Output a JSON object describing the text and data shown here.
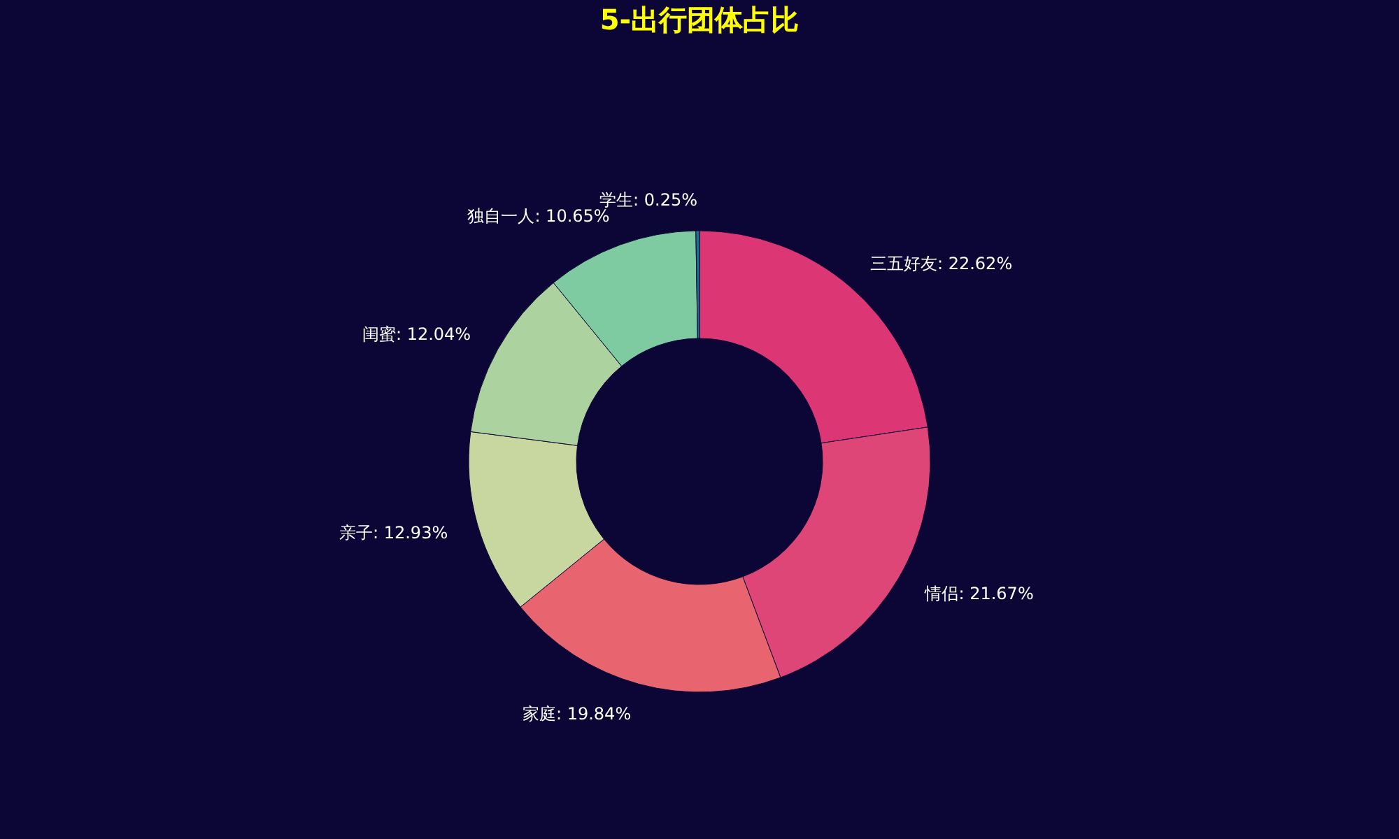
{
  "chart_data": {
    "type": "donut",
    "title": "5-出行团体占比",
    "categories": [
      "三五好友",
      "情侣",
      "家庭",
      "亲子",
      "闺蜜",
      "独自一人",
      "学生"
    ],
    "values": [
      22.62,
      21.67,
      19.84,
      12.93,
      12.04,
      10.65,
      0.25
    ],
    "value_labels": [
      "22.62%",
      "21.67%",
      "19.84%",
      "12.93%",
      "12.04%",
      "10.65%",
      "0.25%"
    ],
    "colors": [
      "#dc3674",
      "#dd4677",
      "#e8646e",
      "#c7d79f",
      "#acd2a0",
      "#7ecba1",
      "#1f6e8c"
    ],
    "legend": false
  }
}
